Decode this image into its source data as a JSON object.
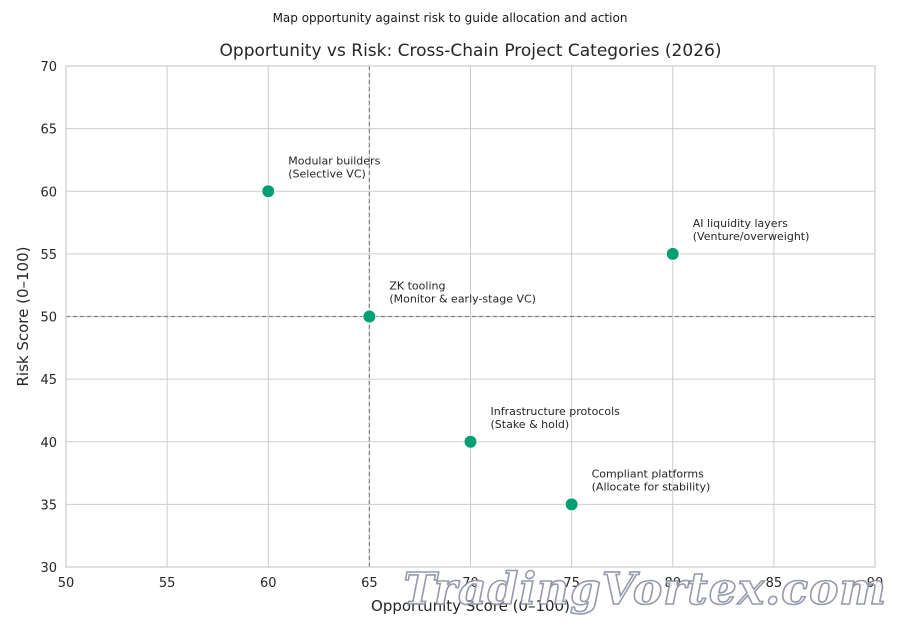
{
  "suptitle": "Map opportunity against risk to guide allocation and action",
  "watermark": "TradingVortex.com",
  "chart_data": {
    "type": "scatter",
    "title": "Opportunity vs Risk: Cross-Chain Project Categories (2026)",
    "xlabel": "Opportunity Score (0–100)",
    "ylabel": "Risk Score (0–100)",
    "xlim": [
      50,
      90
    ],
    "ylim": [
      30,
      70
    ],
    "xticks": [
      50,
      55,
      60,
      65,
      70,
      75,
      80,
      85,
      90
    ],
    "yticks": [
      30,
      35,
      40,
      45,
      50,
      55,
      60,
      65,
      70
    ],
    "grid": true,
    "reference_lines": {
      "x": 65,
      "y": 50
    },
    "point_color": "#009e73",
    "points": [
      {
        "x": 60,
        "y": 60,
        "label": [
          "Modular builders",
          "(Selective VC)"
        ]
      },
      {
        "x": 80,
        "y": 55,
        "label": [
          "AI liquidity layers",
          "(Venture/overweight)"
        ]
      },
      {
        "x": 65,
        "y": 50,
        "label": [
          "ZK tooling",
          "(Monitor & early-stage VC)"
        ]
      },
      {
        "x": 70,
        "y": 40,
        "label": [
          "Infrastructure protocols",
          "(Stake & hold)"
        ]
      },
      {
        "x": 75,
        "y": 35,
        "label": [
          "Compliant platforms",
          "(Allocate for stability)"
        ]
      }
    ]
  }
}
